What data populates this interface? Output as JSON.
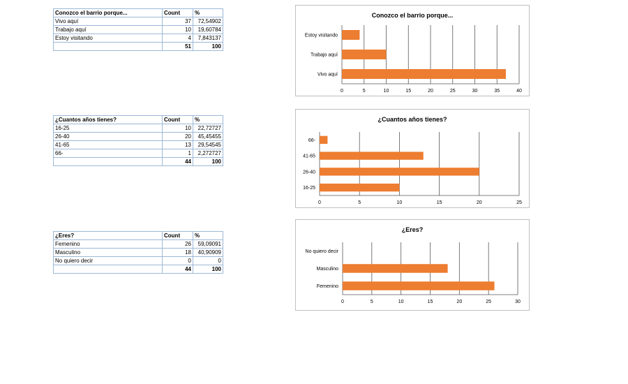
{
  "tables": [
    {
      "headers": [
        "Conozco el barrio porque...",
        "Count",
        "%"
      ],
      "rows": [
        [
          "Vivo aquí",
          "37",
          "72,54902"
        ],
        [
          "Trabajo aquí",
          "10",
          "19,60784"
        ],
        [
          "Estoy visitando",
          "4",
          "7,843137"
        ]
      ],
      "total": [
        "",
        "51",
        "100"
      ]
    },
    {
      "headers": [
        "¿Cuantos años tienes?",
        "Count",
        "%"
      ],
      "rows": [
        [
          "16-25",
          "10",
          "22,72727"
        ],
        [
          "26-40",
          "20",
          "45,45455"
        ],
        [
          "41-65",
          "13",
          "29,54545"
        ],
        [
          "66-",
          "1",
          "2,272727"
        ]
      ],
      "total": [
        "",
        "44",
        "100"
      ]
    },
    {
      "headers": [
        "¿Eres?",
        "Count",
        "%"
      ],
      "rows": [
        [
          "Femenino",
          "26",
          "59,09091"
        ],
        [
          "Masculino",
          "18",
          "40,90909"
        ],
        [
          "No quiero decir",
          "0",
          "0"
        ]
      ],
      "total": [
        "",
        "44",
        "100"
      ]
    }
  ],
  "chart_data": [
    {
      "type": "bar",
      "orientation": "horizontal",
      "title": "Conozco el barrio porque...",
      "categories": [
        "Vivo aquí",
        "Trabajo aquí",
        "Estoy visitando"
      ],
      "values": [
        37,
        10,
        4
      ],
      "xlim": [
        0,
        40
      ],
      "ticks": [
        0,
        5,
        10,
        15,
        20,
        25,
        30,
        35,
        40
      ],
      "grid": true,
      "color": "#ED7D31"
    },
    {
      "type": "bar",
      "orientation": "horizontal",
      "title": "¿Cuantos años tienes?",
      "categories": [
        "16-25",
        "26-40",
        "41-65",
        "66-"
      ],
      "values": [
        10,
        20,
        13,
        1
      ],
      "xlim": [
        0,
        25
      ],
      "ticks": [
        0,
        5,
        10,
        15,
        20,
        25
      ],
      "grid": true,
      "color": "#ED7D31"
    },
    {
      "type": "bar",
      "orientation": "horizontal",
      "title": "¿Eres?",
      "categories": [
        "Femenino",
        "Masculino",
        "No quiero decir"
      ],
      "values": [
        26,
        18,
        0
      ],
      "xlim": [
        0,
        30
      ],
      "ticks": [
        0,
        5,
        10,
        15,
        20,
        25,
        30
      ],
      "grid": true,
      "color": "#ED7D31"
    }
  ]
}
